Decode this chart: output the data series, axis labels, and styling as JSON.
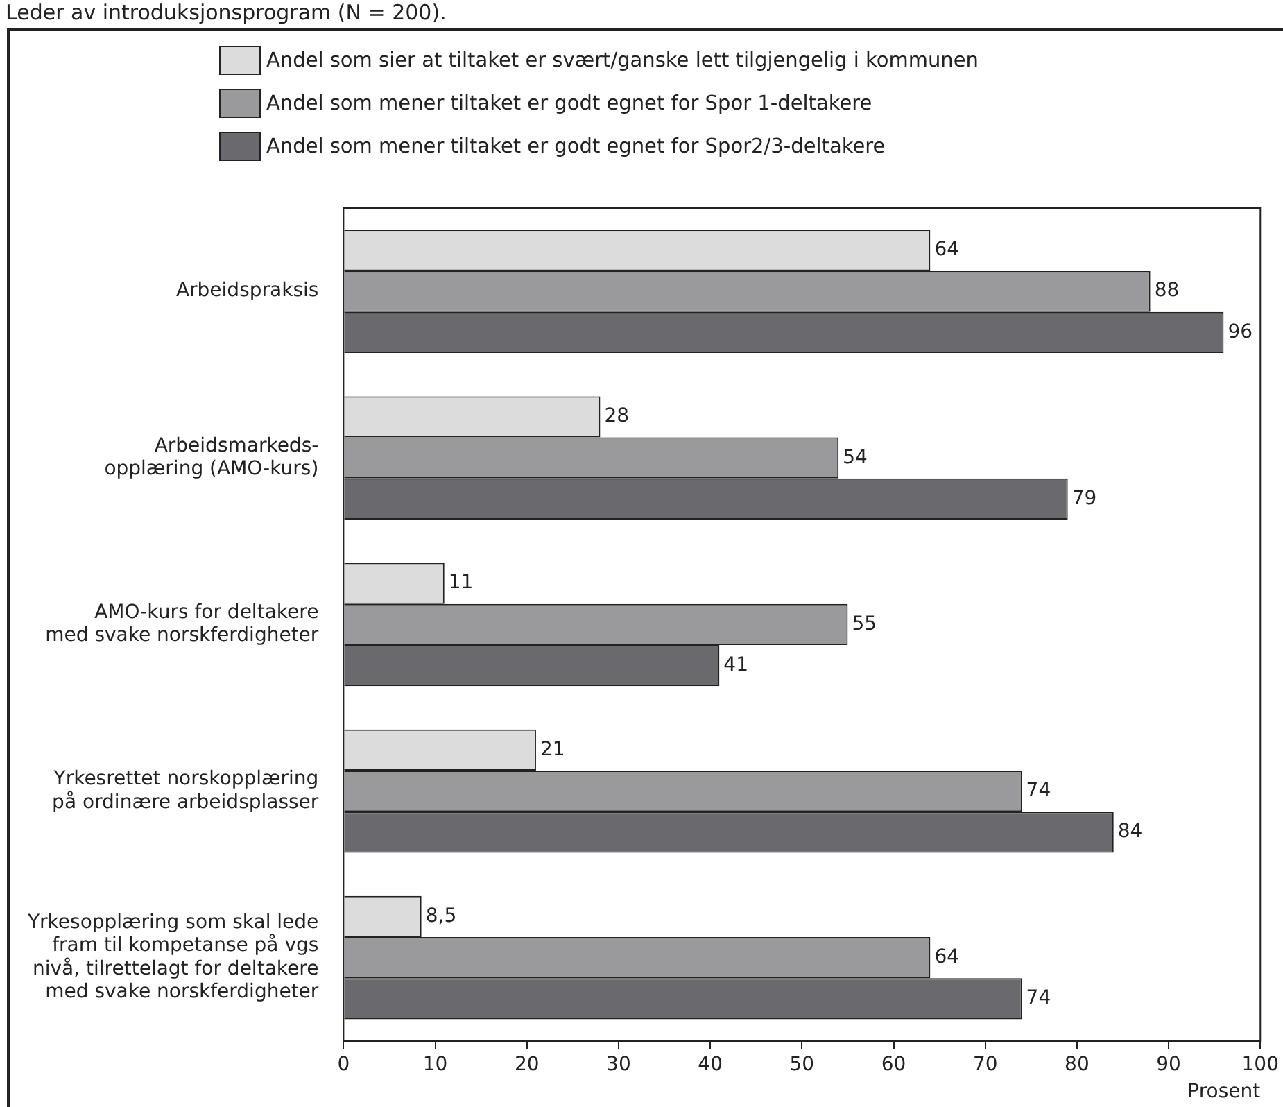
{
  "chart_data": {
    "type": "bar",
    "orientation": "horizontal",
    "title": "Leder av introduksjonsprogram (N = 200).",
    "xlabel": "Prosent",
    "categories": [
      "Arbeidspraksis",
      "Arbeidsmarkeds-\nopplæring (AMO-kurs)",
      "AMO-kurs for deltakere\nmed svake norskferdigheter",
      "Yrkesrettet norskopplæring\npå ordinære arbeidsplasser",
      "Yrkesopplæring som skal lede\nfram til kompetanse på vgs\nnivå, tilrettelagt for deltakere\nmed svake norskferdigheter"
    ],
    "series": [
      {
        "name": "Andel som sier at tiltaket er svært/ganske lett tilgjengelig i kommunen",
        "color": "#dcdcdc",
        "values": [
          64,
          28,
          11,
          21,
          8.5
        ],
        "value_labels": [
          "64",
          "28",
          "11",
          "21",
          "8,5"
        ]
      },
      {
        "name": "Andel som mener tiltaket er godt egnet for Spor 1-deltakere",
        "color": "#9a9a9c",
        "values": [
          88,
          54,
          55,
          74,
          64
        ],
        "value_labels": [
          "88",
          "54",
          "55",
          "74",
          "64"
        ]
      },
      {
        "name": "Andel som mener tiltaket er godt egnet for Spor2/3-deltakere",
        "color": "#6a6a6e",
        "values": [
          96,
          79,
          41,
          84,
          74
        ],
        "value_labels": [
          "96",
          "79",
          "41",
          "84",
          "74"
        ]
      }
    ],
    "xlim": [
      0,
      100
    ],
    "xticks": [
      0,
      10,
      20,
      30,
      40,
      50,
      60,
      70,
      80,
      90,
      100
    ],
    "grid": false,
    "legend": "top"
  }
}
